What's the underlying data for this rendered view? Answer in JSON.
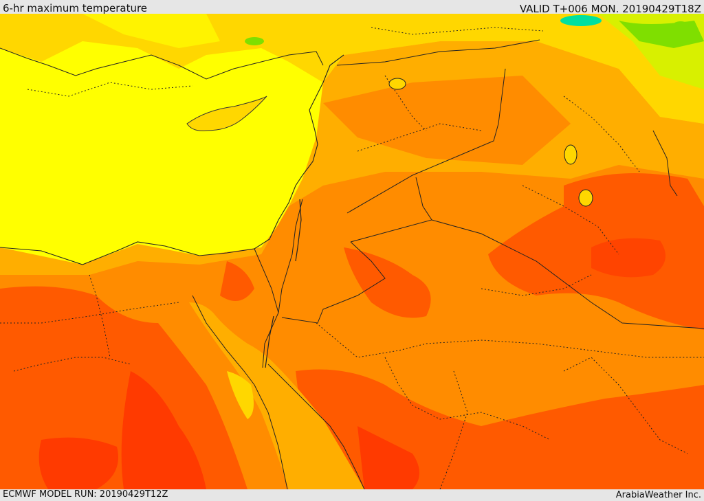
{
  "header": {
    "title": "6-hr maximum temperature",
    "valid": "VALID T+006 MON. 20190429T18Z"
  },
  "footer": {
    "model_run": "ECMWF MODEL RUN: 20190429T12Z",
    "credit": "ArabiaWeather Inc."
  },
  "colors": {
    "sea_yellow": "#ffff00",
    "warm_gold": "#ffd700",
    "orange_light": "#ffae00",
    "orange": "#ff8c00",
    "orange_red": "#ff5a00",
    "red": "#ff3a00",
    "green": "#7fdf00",
    "cyan": "#00e0a0"
  }
}
